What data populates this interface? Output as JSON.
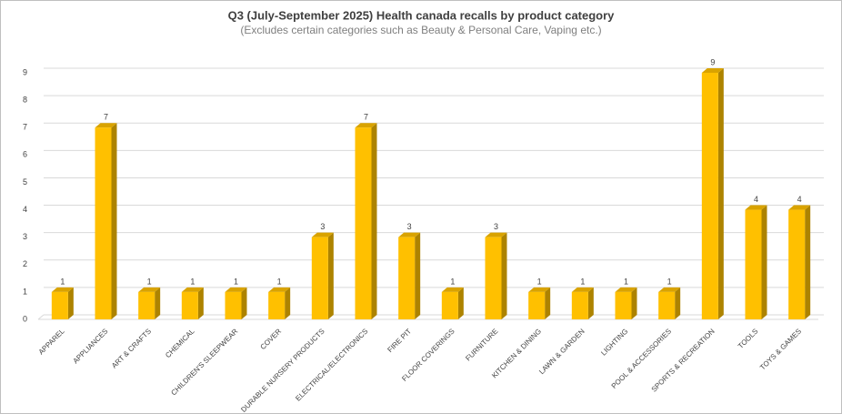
{
  "chart_data": {
    "type": "bar3d",
    "title": "Q3 (July-September 2025) Health canada recalls by product category",
    "subtitle": "(Excludes certain categories such as Beauty & Personal Care, Vaping etc.)",
    "categories": [
      "APPAREL",
      "APPLIANCES",
      "ART & CRAFTS",
      "CHEMICAL",
      "CHILDREN'S SLEEPWEAR",
      "COVER",
      "DURABLE NURSERY PRODUCTS",
      "ELECTRICAL/ELECTRONICS",
      "FIRE PIT",
      "FLOOR COVERINGS",
      "FURNITURE",
      "KITCHEN & DINING",
      "LAWN & GARDEN",
      "LIGHTING",
      "POOL & ACCESSORIES",
      "SPORTS & RECREATION",
      "TOOLS",
      "TOYS & GAMES"
    ],
    "values": [
      1,
      7,
      1,
      1,
      1,
      1,
      3,
      7,
      3,
      1,
      3,
      1,
      1,
      1,
      1,
      9,
      4,
      4
    ],
    "color": "#ffc000",
    "ylim": [
      0,
      9
    ],
    "yticks": [
      0,
      1,
      2,
      3,
      4,
      5,
      6,
      7,
      8,
      9
    ],
    "grid": true
  }
}
